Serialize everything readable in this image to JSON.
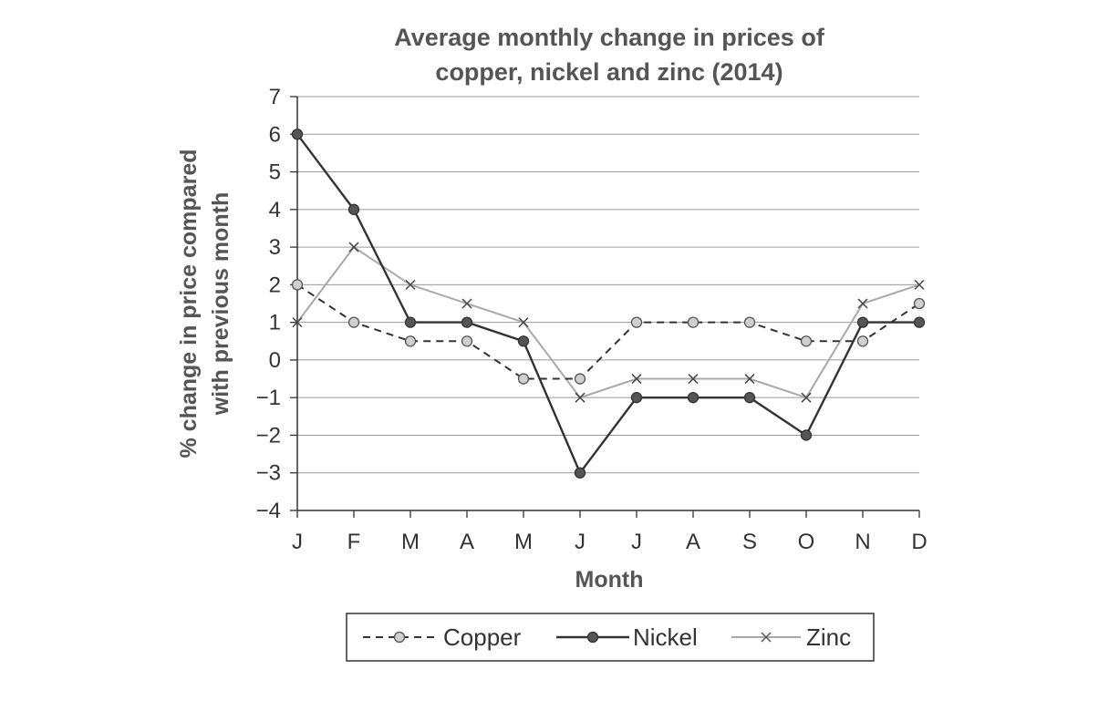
{
  "chart_data": {
    "type": "line",
    "title_lines": [
      "Average monthly change in prices of",
      "copper, nickel and zinc (2014)"
    ],
    "xlabel": "Month",
    "ylabel_lines": [
      "% change in price compared",
      "with previous month"
    ],
    "categories": [
      "J",
      "F",
      "M",
      "A",
      "M",
      "J",
      "J",
      "A",
      "S",
      "O",
      "N",
      "D"
    ],
    "ylim": [
      -4,
      7
    ],
    "yticks": [
      7,
      6,
      5,
      4,
      3,
      2,
      1,
      0,
      -1,
      -2,
      -3,
      -4
    ],
    "ytick_labels": [
      "7",
      "6",
      "5",
      "4",
      "3",
      "2",
      "1",
      "0",
      "−1",
      "−2",
      "−3",
      "−4"
    ],
    "grid": true,
    "legend_position": "bottom-center",
    "series": [
      {
        "name": "Copper",
        "style": "dashed",
        "marker": "circle-light",
        "color": "#333333",
        "values": [
          2,
          1,
          0.5,
          0.5,
          -0.5,
          -0.5,
          1,
          1,
          1,
          0.5,
          0.5,
          1.5
        ]
      },
      {
        "name": "Nickel",
        "style": "solid",
        "marker": "circle-dark",
        "color": "#333333",
        "values": [
          6,
          4,
          1,
          1,
          0.5,
          -3,
          -1,
          -1,
          -1,
          -2,
          1,
          1
        ]
      },
      {
        "name": "Zinc",
        "style": "solid-light",
        "marker": "cross",
        "color": "#a8a8a8",
        "values": [
          1,
          3,
          2,
          1.5,
          1,
          -1,
          -0.5,
          -0.5,
          -0.5,
          -1,
          1.5,
          2
        ]
      }
    ]
  }
}
